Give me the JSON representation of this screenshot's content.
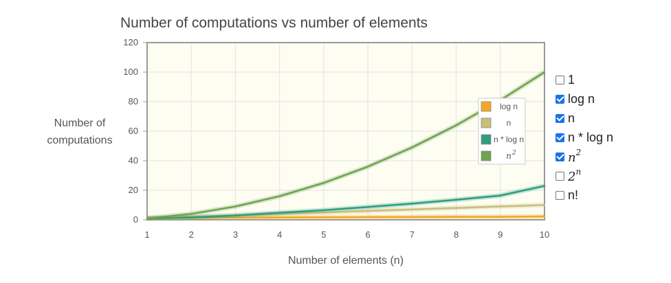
{
  "chart_data": {
    "type": "line",
    "title": "Number of computations vs number of elements",
    "xlabel": "Number of elements (n)",
    "ylabel_lines": [
      "Number of",
      "computations"
    ],
    "xlim": [
      1,
      10
    ],
    "ylim": [
      0,
      120
    ],
    "x_ticks": [
      1,
      2,
      3,
      4,
      5,
      6,
      7,
      8,
      9,
      10
    ],
    "y_ticks": [
      0,
      20,
      40,
      60,
      80,
      100,
      120
    ],
    "grid": true,
    "legend_position": "right, inside plot",
    "x": [
      1,
      2,
      3,
      4,
      5,
      6,
      7,
      8,
      9,
      10
    ],
    "series": [
      {
        "name": "log n",
        "color": "#f5a623",
        "values": [
          1.0,
          1.3,
          1.5,
          1.6,
          1.7,
          1.8,
          1.9,
          2.0,
          2.0,
          2.3
        ]
      },
      {
        "name": "n",
        "color": "#c9bf7a",
        "values": [
          1,
          2,
          3,
          4,
          5,
          6,
          7,
          8,
          9,
          10
        ]
      },
      {
        "name": "n * log n",
        "color": "#2e9e7e",
        "values": [
          1.0,
          1.6,
          2.9,
          4.8,
          6.5,
          8.7,
          11.0,
          13.6,
          16.4,
          23.0
        ]
      },
      {
        "name": "n^2",
        "base": "n",
        "exp": "2",
        "color": "#6fa34f",
        "values": [
          1,
          4,
          9,
          16,
          25,
          36,
          49,
          64,
          81,
          100
        ]
      }
    ]
  },
  "controls": [
    {
      "id": "1",
      "label": "1",
      "checked": false,
      "math": false
    },
    {
      "id": "logn",
      "label": "log n",
      "checked": true,
      "math": false
    },
    {
      "id": "n",
      "label": "n",
      "checked": true,
      "math": false
    },
    {
      "id": "nlogn",
      "label": "n * log n",
      "checked": true,
      "math": false
    },
    {
      "id": "n2",
      "label": "n",
      "sup": "2",
      "checked": true,
      "math": true
    },
    {
      "id": "2n",
      "label": "2",
      "sup": "n",
      "checked": false,
      "math": true
    },
    {
      "id": "nfact",
      "label": "n!",
      "checked": false,
      "math": false
    }
  ]
}
